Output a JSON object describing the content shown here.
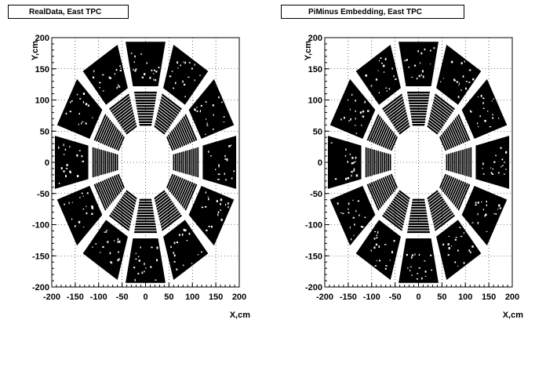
{
  "chart_data": [
    {
      "type": "scatter",
      "title": "RealData, East TPC",
      "xlabel": "X,cm",
      "ylabel": "Y,cm",
      "xlim": [
        -200,
        200
      ],
      "ylim": [
        -200,
        200
      ],
      "x_ticks": [
        "-200",
        "-150",
        "-100",
        "-50",
        "0",
        "50",
        "100",
        "150",
        "200"
      ],
      "y_ticks": [
        "200",
        "150",
        "100",
        "50",
        "0",
        "-50",
        "-100",
        "-150",
        "-200"
      ],
      "grid": true,
      "description_of_marks": "dense hit density forming 12 outer trapezoid sectors and 12 inner pad-row sectors",
      "colors": {
        "marks": "#000000",
        "background": "#ffffff"
      }
    },
    {
      "type": "scatter",
      "title": "PiMinus Embedding, East TPC",
      "xlabel": "X,cm",
      "ylabel": "Y,cm",
      "xlim": [
        -200,
        200
      ],
      "ylim": [
        -200,
        200
      ],
      "x_ticks": [
        "-200",
        "-150",
        "-100",
        "-50",
        "0",
        "50",
        "100",
        "150",
        "200"
      ],
      "y_ticks": [
        "200",
        "150",
        "100",
        "50",
        "0",
        "-50",
        "-100",
        "-150",
        "-200"
      ],
      "grid": true,
      "description_of_marks": "dense hit density forming 12 outer trapezoid sectors and 12 inner pad-row sectors",
      "colors": {
        "marks": "#000000",
        "background": "#ffffff"
      }
    }
  ]
}
